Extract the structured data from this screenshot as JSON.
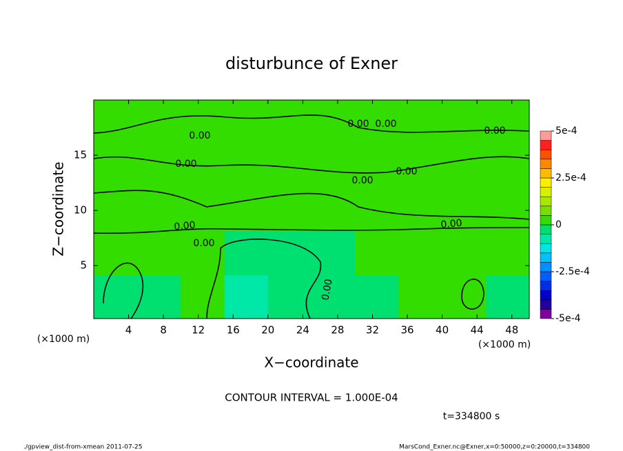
{
  "chart_data": {
    "type": "contour",
    "title": "disturbunce of Exner",
    "x_label": "X−coordinate",
    "y_label": "Z−coordinate",
    "x_unit_labels": [
      "(×1000 m)",
      "(×1000 m)"
    ],
    "contour_interval": "CONTOUR INTERVAL = 1.000E-04",
    "time_label": "t=334800 s",
    "footer_left": "./gpview_dist-from-xmean  2011-07-25",
    "footer_right": "MarsCond_Exner.nc@Exner,x=0:50000,z=0:20000,t=334800",
    "contour_labels": [
      "0.00",
      "0.00",
      "0.00",
      "0.00",
      "0.00",
      "0.00",
      "0.00",
      "0.00",
      "0.00",
      "0.00",
      "0.00"
    ],
    "xlim": [
      0,
      50
    ],
    "ylim": [
      0.2,
      20
    ],
    "xticks": [
      4,
      8,
      12,
      16,
      20,
      24,
      28,
      32,
      36,
      40,
      44,
      48
    ],
    "yticks": [
      5,
      10,
      15
    ],
    "z": [
      [
        -2e-05,
        -1e-05,
        1e-05,
        -6e-05,
        -4e-05,
        -4e-05,
        -2e-05,
        1e-05,
        1e-05,
        -1e-05
      ],
      [
        1e-05,
        1e-05,
        1e-05,
        -2e-05,
        -3e-05,
        -2e-05,
        1e-05,
        1e-05,
        2e-05,
        1e-05
      ],
      [
        1e-05,
        2e-05,
        2e-05,
        2e-05,
        2e-05,
        2e-05,
        2e-05,
        1e-05,
        2e-05,
        2e-05
      ],
      [
        2e-05,
        2e-05,
        2e-05,
        3e-05,
        2e-05,
        2e-05,
        2e-05,
        2e-05,
        2e-05,
        2e-05
      ],
      [
        2e-05,
        2e-05,
        1e-05,
        2e-05,
        2e-05,
        2e-05,
        2e-05,
        2e-05,
        2e-05,
        2e-05
      ]
    ],
    "levels": [
      -0.0005,
      -0.00045,
      -0.0004,
      -0.00035,
      -0.0003,
      -0.00025,
      -0.0002,
      -0.00015,
      -0.0001,
      -5e-05,
      0,
      5e-05,
      0.0001,
      0.00015,
      0.0002,
      0.00025,
      0.0003,
      0.00035,
      0.0004,
      0.00045,
      0.0005
    ],
    "colors": [
      "#7f00a0",
      "#2000a0",
      "#0000c8",
      "#0030e0",
      "#0060ff",
      "#0090ff",
      "#00c0ff",
      "#00e6e6",
      "#00e8a8",
      "#00e070",
      "#33dd00",
      "#77e000",
      "#a8e800",
      "#d8f000",
      "#ffee00",
      "#ffbb00",
      "#ff8800",
      "#ff5000",
      "#ff2020",
      "#ff9a9a"
    ],
    "cbar_ticks": [
      {
        "value": 0.0005,
        "label": "5e-4"
      },
      {
        "value": 0.00025,
        "label": "2.5e-4"
      },
      0,
      {
        "value": -0.00025,
        "label": "-2.5e-4"
      },
      {
        "value": -0.0005,
        "label": "-5e-4"
      }
    ]
  }
}
